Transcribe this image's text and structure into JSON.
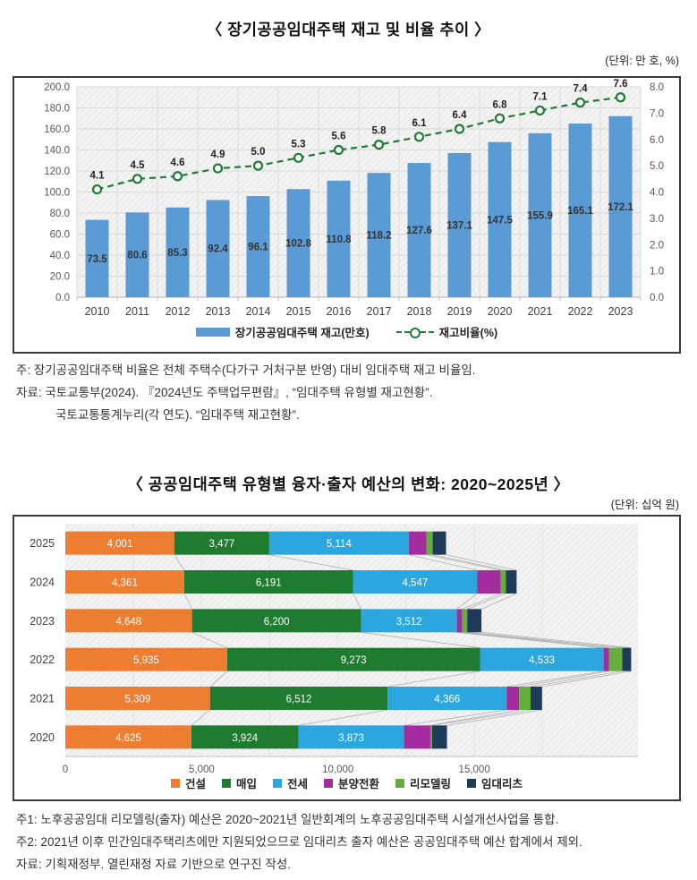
{
  "chart_data": [
    {
      "type": "bar",
      "subtype": "bar-line-combo",
      "title": "〈 장기공공임대주택 재고 및 비율 추이 〉",
      "unit_label": "(단위: 만 호, %)",
      "categories": [
        "2010",
        "2011",
        "2012",
        "2013",
        "2014",
        "2015",
        "2016",
        "2017",
        "2018",
        "2019",
        "2020",
        "2021",
        "2022",
        "2023"
      ],
      "series": [
        {
          "name": "장기공공임대주택 재고(만호)",
          "type": "bar",
          "axis": "left",
          "color": "#5B9BD5",
          "values": [
            73.5,
            80.6,
            85.3,
            92.4,
            96.1,
            102.8,
            110.8,
            118.2,
            127.6,
            137.1,
            147.5,
            155.9,
            165.1,
            172.1
          ]
        },
        {
          "name": "재고비율(%)",
          "type": "line",
          "axis": "right",
          "color": "#1E7B34",
          "line_style": "dashed",
          "marker": "open-circle",
          "values": [
            4.1,
            4.5,
            4.6,
            4.9,
            5.0,
            5.3,
            5.6,
            5.8,
            6.1,
            6.4,
            6.8,
            7.1,
            7.4,
            7.6
          ]
        }
      ],
      "left_axis": {
        "min": 0,
        "max": 200,
        "step": 20
      },
      "right_axis": {
        "min": 0,
        "max": 8,
        "step": 1
      },
      "grid": true,
      "legend_position": "bottom"
    },
    {
      "type": "bar",
      "subtype": "stacked-horizontal",
      "title": "〈 공공임대주택 유형별 융자·출자 예산의 변화: 2020~2025년 〉",
      "unit_label": "(단위: 십억 원)",
      "categories": [
        "2025",
        "2024",
        "2023",
        "2022",
        "2021",
        "2020"
      ],
      "series": [
        {
          "name": "건설",
          "color": "#ED7D31",
          "values": [
            4001,
            4361,
            4648,
            5935,
            5309,
            4625
          ]
        },
        {
          "name": "매입",
          "color": "#1E7B2F",
          "values": [
            3477,
            6191,
            6200,
            9273,
            6512,
            3924
          ]
        },
        {
          "name": "전세",
          "color": "#2BA6DE",
          "values": [
            5114,
            4547,
            3512,
            4533,
            4366,
            3873
          ]
        },
        {
          "name": "분양전환",
          "color": "#A52C9F",
          "values": [
            650,
            870,
            190,
            195,
            455,
            965
          ]
        },
        {
          "name": "리모델링",
          "color": "#64AE3E",
          "values": [
            230,
            190,
            190,
            490,
            420,
            60
          ]
        },
        {
          "name": "임대리츠",
          "color": "#1E3C59",
          "values": [
            490,
            390,
            520,
            325,
            420,
            550
          ]
        }
      ],
      "x_axis": {
        "min": 0,
        "max": 21000,
        "tick_step": 5000,
        "grid_step": 2500
      },
      "label_threshold": 3000,
      "series_connector_lines": true,
      "legend_position": "bottom"
    }
  ],
  "notes1": [
    "주: 장기공공임대주택 비율은 전체 주택수(다가구 거처구분 반영) 대비 임대주택 재고 비율임.",
    "자료: 국토교통부(2024). 『2024년도 주택업무편람』, “임대주택 유형별 재고현황”.",
    "국토교통통계누리(각 연도). “임대주택 재고현황”."
  ],
  "notes2": [
    "주1: 노후공공임대 리모델링(출자) 예산은 2020~2021년 일반회계의 노후공공임대주택 시설개선사업을 통합.",
    "주2: 2021년 이후 민간임대주택리츠에만 지원되었으므로 임대리츠 출자 예산은 공공임대주택 예산 합계에서 제외.",
    "자료: 기획재정부. 열린재정 자료 기반으로 연구진 작성."
  ]
}
